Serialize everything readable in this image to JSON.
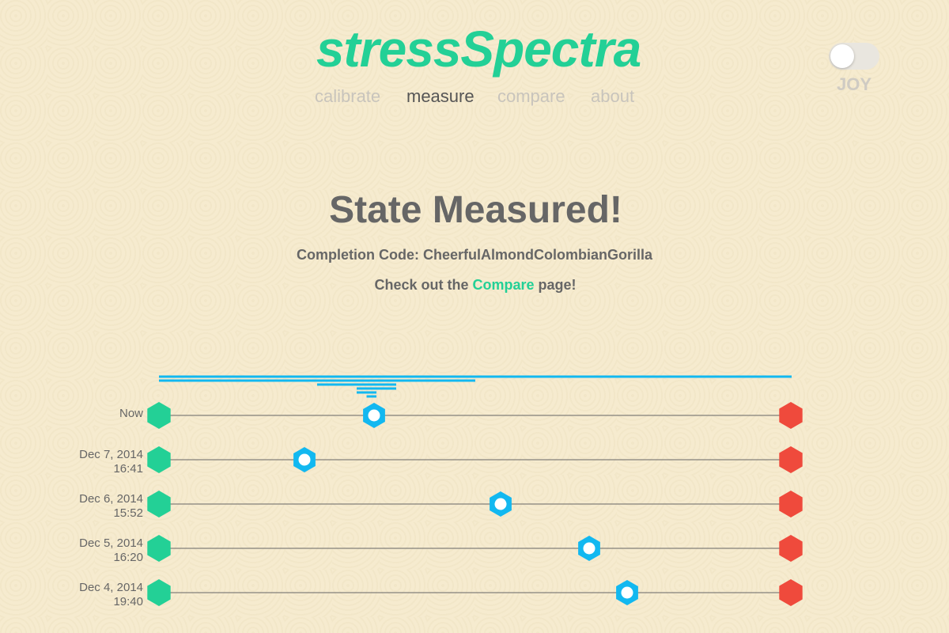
{
  "app": {
    "title": "stressSpectra"
  },
  "nav": [
    {
      "label": "calibrate",
      "active": false
    },
    {
      "label": "measure",
      "active": true
    },
    {
      "label": "compare",
      "active": false
    },
    {
      "label": "about",
      "active": false
    }
  ],
  "toggle": {
    "label": "JOY",
    "on": false
  },
  "main": {
    "heading": "State Measured!",
    "code_label": "Completion Code: ",
    "code_value": "CheerfulAlmondColombianGorilla",
    "check_prefix": "Check out the ",
    "check_link": "Compare",
    "check_suffix": " page!"
  },
  "colors": {
    "brand": "#23d096",
    "marker": "#12b8f0",
    "calm": "#23d096",
    "stress": "#ef4a3c",
    "text": "#666666",
    "nav_inactive": "#c8c4bc"
  },
  "icons": {
    "calm_end": "green-hexagon-icon",
    "stress_end": "red-hexagon-icon",
    "marker": "blue-hexagon-marker-icon"
  },
  "chart_data": {
    "type": "scatter",
    "scale_range": [
      0,
      1
    ],
    "measurements": [
      {
        "date": "Now",
        "time": "",
        "value": 0.34
      },
      {
        "date": "Dec 7, 2014",
        "time": "16:41",
        "value": 0.23
      },
      {
        "date": "Dec 6, 2014",
        "time": "15:52",
        "value": 0.54
      },
      {
        "date": "Dec 5, 2014",
        "time": "16:20",
        "value": 0.68
      },
      {
        "date": "Dec 4, 2014",
        "time": "19:40",
        "value": 0.74
      }
    ],
    "spectrum_bands": [
      [
        0,
        1
      ],
      [
        0,
        0.5
      ],
      [
        0.25,
        0.375
      ],
      [
        0.3125,
        0.375
      ],
      [
        0.3125,
        0.34375
      ],
      [
        0.328125,
        0.34375
      ]
    ]
  }
}
